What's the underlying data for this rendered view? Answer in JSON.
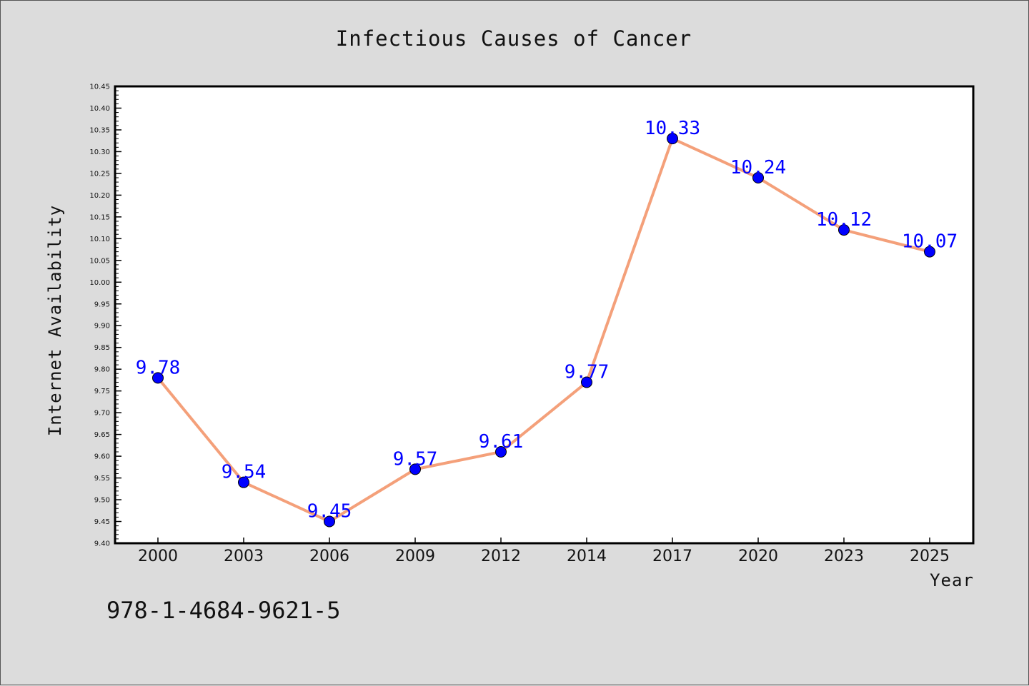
{
  "chart_data": {
    "type": "line",
    "title": "Infectious Causes of Cancer",
    "xlabel": "Year",
    "ylabel": "Internet Availability",
    "categories": [
      "2000",
      "2003",
      "2006",
      "2009",
      "2012",
      "2014",
      "2017",
      "2020",
      "2023",
      "2025"
    ],
    "series": [
      {
        "values": [
          9.78,
          9.54,
          9.45,
          9.57,
          9.61,
          9.77,
          10.33,
          10.24,
          10.12,
          10.07
        ],
        "labels": [
          "9.78",
          "9.54",
          "9.45",
          "9.57",
          "9.61",
          "9.77",
          "10.33",
          "10.24",
          "10.12",
          "10.07"
        ],
        "line_color": "#f4a07a",
        "marker_color": "#0000ff"
      }
    ],
    "ylim": [
      9.4,
      10.45
    ],
    "yticks": [
      "9.40",
      "9.45",
      "9.50",
      "9.55",
      "9.60",
      "9.65",
      "9.70",
      "9.75",
      "9.80",
      "9.85",
      "9.90",
      "9.95",
      "10.00",
      "10.05",
      "10.10",
      "10.15",
      "10.20",
      "10.25",
      "10.30",
      "10.35",
      "10.40",
      "10.45"
    ],
    "grid": false,
    "legend": "none"
  },
  "annotation": "978-1-4684-9621-5"
}
